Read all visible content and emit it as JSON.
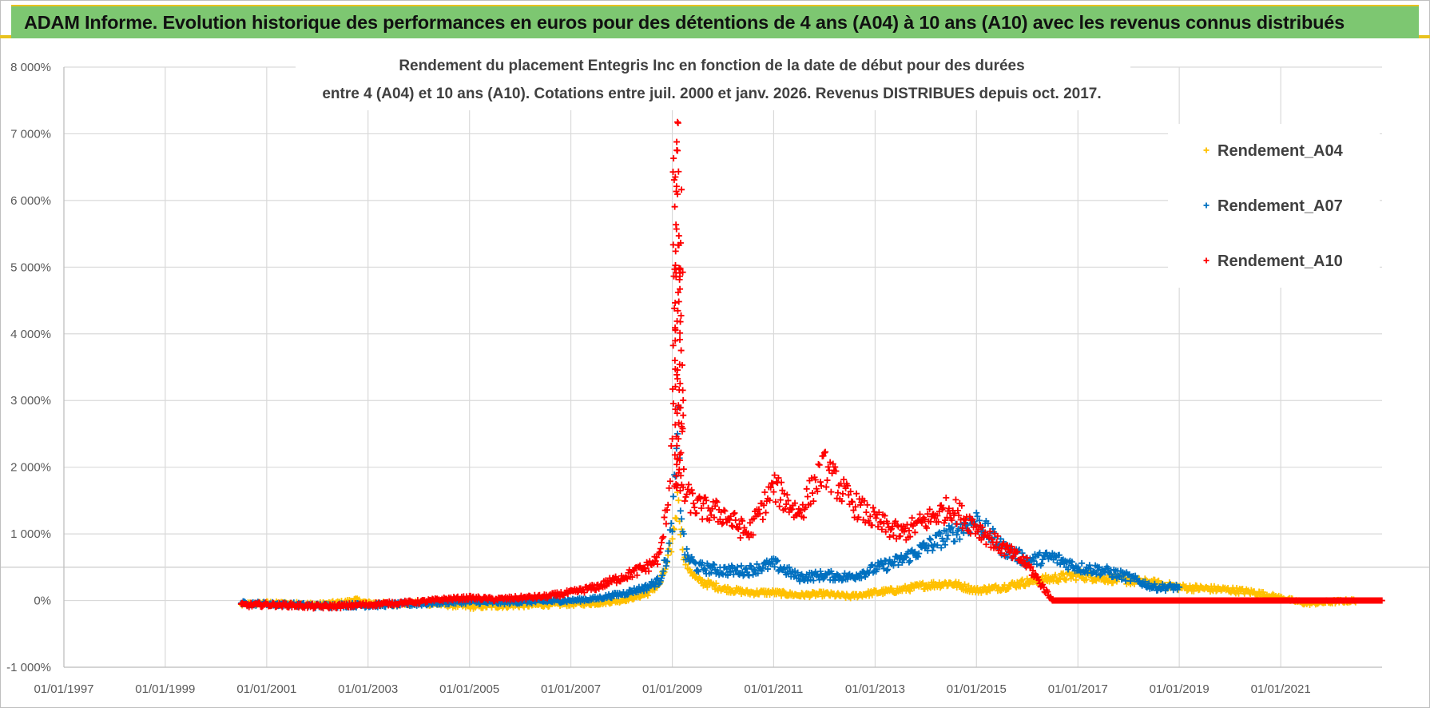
{
  "header": {
    "banner_title": "ADAM Informe. Evolution historique des performances en euros pour des détentions de 4 ans (A04) à 10 ans (A10) avec les revenus connus distribués"
  },
  "chart_data": {
    "type": "scatter",
    "title_line1": "Rendement du placement Entegris Inc en fonction de la date de début pour des durées",
    "title_line2": "entre 4 (A04) et 10 ans (A10). Cotations entre juil. 2000 et janv. 2026. Revenus DISTRIBUES depuis oct. 2017.",
    "xlabel": "",
    "ylabel": "",
    "ylim": [
      -1000,
      8000
    ],
    "xlim": [
      "1997-01-01",
      "2023-01-01"
    ],
    "x_ticks": [
      "01/01/1997",
      "01/01/1999",
      "01/01/2001",
      "01/01/2003",
      "01/01/2005",
      "01/01/2007",
      "01/01/2009",
      "01/01/2011",
      "01/01/2013",
      "01/01/2015",
      "01/01/2017",
      "01/01/2019",
      "01/01/2021"
    ],
    "y_ticks": [
      "8 000%",
      "7 000%",
      "6 000%",
      "5 000%",
      "4 000%",
      "3 000%",
      "2 000%",
      "1 000%",
      "0%",
      "-1 000%"
    ],
    "y_tick_values": [
      8000,
      7000,
      6000,
      5000,
      4000,
      3000,
      2000,
      1000,
      0,
      -1000
    ],
    "grid": true,
    "legend_position": "top-right",
    "marker": "+",
    "series": [
      {
        "name": "Rendement_A04",
        "color": "#ffc000",
        "points": [
          [
            "2000-07-01",
            -60
          ],
          [
            "2001-01-01",
            -40
          ],
          [
            "2001-07-01",
            -50
          ],
          [
            "2002-01-01",
            -60
          ],
          [
            "2002-07-01",
            -30
          ],
          [
            "2002-10-01",
            10
          ],
          [
            "2003-01-01",
            -40
          ],
          [
            "2003-07-01",
            -50
          ],
          [
            "2004-01-01",
            -40
          ],
          [
            "2004-07-01",
            -60
          ],
          [
            "2005-01-01",
            -90
          ],
          [
            "2005-07-01",
            -80
          ],
          [
            "2006-01-01",
            -70
          ],
          [
            "2006-07-01",
            -60
          ],
          [
            "2007-01-01",
            -50
          ],
          [
            "2007-07-01",
            -40
          ],
          [
            "2008-01-01",
            0
          ],
          [
            "2008-07-01",
            100
          ],
          [
            "2008-10-01",
            250
          ],
          [
            "2008-12-01",
            600
          ],
          [
            "2009-01-01",
            900
          ],
          [
            "2009-02-15",
            1600
          ],
          [
            "2009-03-01",
            1100
          ],
          [
            "2009-04-01",
            600
          ],
          [
            "2009-07-01",
            300
          ],
          [
            "2010-01-01",
            180
          ],
          [
            "2010-07-01",
            120
          ],
          [
            "2011-01-01",
            120
          ],
          [
            "2011-07-01",
            80
          ],
          [
            "2012-01-01",
            100
          ],
          [
            "2012-07-01",
            60
          ],
          [
            "2013-01-01",
            120
          ],
          [
            "2013-07-01",
            160
          ],
          [
            "2014-01-01",
            230
          ],
          [
            "2014-07-01",
            260
          ],
          [
            "2015-01-01",
            150
          ],
          [
            "2015-07-01",
            200
          ],
          [
            "2016-01-01",
            280
          ],
          [
            "2016-07-01",
            330
          ],
          [
            "2017-01-01",
            380
          ],
          [
            "2017-07-01",
            340
          ],
          [
            "2018-01-01",
            300
          ],
          [
            "2018-07-01",
            260
          ],
          [
            "2019-01-01",
            200
          ],
          [
            "2019-07-01",
            180
          ],
          [
            "2020-01-01",
            160
          ],
          [
            "2020-07-01",
            120
          ],
          [
            "2021-01-01",
            40
          ],
          [
            "2021-07-01",
            -40
          ],
          [
            "2022-01-01",
            -20
          ],
          [
            "2022-07-01",
            0
          ]
        ]
      },
      {
        "name": "Rendement_A07",
        "color": "#0070c0",
        "points": [
          [
            "2000-07-01",
            -40
          ],
          [
            "2001-01-01",
            -50
          ],
          [
            "2001-07-01",
            -60
          ],
          [
            "2002-01-01",
            -80
          ],
          [
            "2002-07-01",
            -70
          ],
          [
            "2003-01-01",
            -70
          ],
          [
            "2003-07-01",
            -60
          ],
          [
            "2004-01-01",
            -50
          ],
          [
            "2004-07-01",
            -30
          ],
          [
            "2005-01-01",
            -20
          ],
          [
            "2005-07-01",
            -30
          ],
          [
            "2006-01-01",
            -20
          ],
          [
            "2006-07-01",
            -10
          ],
          [
            "2007-01-01",
            0
          ],
          [
            "2007-07-01",
            30
          ],
          [
            "2008-01-01",
            100
          ],
          [
            "2008-07-01",
            200
          ],
          [
            "2008-10-01",
            300
          ],
          [
            "2008-12-01",
            700
          ],
          [
            "2009-01-01",
            1200
          ],
          [
            "2009-02-15",
            2600
          ],
          [
            "2009-03-01",
            1500
          ],
          [
            "2009-04-01",
            700
          ],
          [
            "2009-07-01",
            500
          ],
          [
            "2010-01-01",
            450
          ],
          [
            "2010-07-01",
            450
          ],
          [
            "2011-01-01",
            550
          ],
          [
            "2011-07-01",
            350
          ],
          [
            "2012-01-01",
            380
          ],
          [
            "2012-07-01",
            350
          ],
          [
            "2013-01-01",
            480
          ],
          [
            "2013-07-01",
            600
          ],
          [
            "2014-01-01",
            800
          ],
          [
            "2014-07-01",
            1000
          ],
          [
            "2015-01-01",
            1200
          ],
          [
            "2015-07-01",
            800
          ],
          [
            "2016-01-01",
            600
          ],
          [
            "2016-07-01",
            650
          ],
          [
            "2017-01-01",
            500
          ],
          [
            "2017-07-01",
            450
          ],
          [
            "2018-01-01",
            350
          ],
          [
            "2018-07-01",
            200
          ],
          [
            "2019-01-01",
            200
          ]
        ]
      },
      {
        "name": "Rendement_A10",
        "color": "#ff0000",
        "points": [
          [
            "2000-07-01",
            -70
          ],
          [
            "2001-01-01",
            -60
          ],
          [
            "2001-07-01",
            -70
          ],
          [
            "2002-01-01",
            -90
          ],
          [
            "2002-07-01",
            -80
          ],
          [
            "2003-01-01",
            -60
          ],
          [
            "2003-07-01",
            -40
          ],
          [
            "2004-01-01",
            -20
          ],
          [
            "2004-07-01",
            20
          ],
          [
            "2005-01-01",
            40
          ],
          [
            "2005-07-01",
            20
          ],
          [
            "2006-01-01",
            40
          ],
          [
            "2006-07-01",
            60
          ],
          [
            "2007-01-01",
            120
          ],
          [
            "2007-07-01",
            200
          ],
          [
            "2008-01-01",
            350
          ],
          [
            "2008-07-01",
            500
          ],
          [
            "2008-10-01",
            650
          ],
          [
            "2008-12-01",
            1500
          ],
          [
            "2009-01-01",
            2500
          ],
          [
            "2009-02-15",
            7200
          ],
          [
            "2009-03-01",
            3000
          ],
          [
            "2009-04-01",
            1600
          ],
          [
            "2009-07-01",
            1400
          ],
          [
            "2010-01-01",
            1300
          ],
          [
            "2010-07-01",
            1000
          ],
          [
            "2011-01-01",
            1700
          ],
          [
            "2011-07-01",
            1300
          ],
          [
            "2012-01-01",
            2000
          ],
          [
            "2012-07-01",
            1500
          ],
          [
            "2013-01-01",
            1200
          ],
          [
            "2013-07-01",
            1000
          ],
          [
            "2014-01-01",
            1200
          ],
          [
            "2014-07-01",
            1400
          ],
          [
            "2015-01-01",
            1100
          ],
          [
            "2015-07-01",
            800
          ],
          [
            "2016-01-01",
            550
          ],
          [
            "2016-07-01",
            0
          ],
          [
            "2017-01-01",
            0
          ],
          [
            "2018-01-01",
            0
          ],
          [
            "2019-01-01",
            0
          ],
          [
            "2020-01-01",
            0
          ],
          [
            "2021-01-01",
            0
          ],
          [
            "2022-01-01",
            0
          ],
          [
            "2022-12-31",
            0
          ]
        ]
      }
    ]
  }
}
